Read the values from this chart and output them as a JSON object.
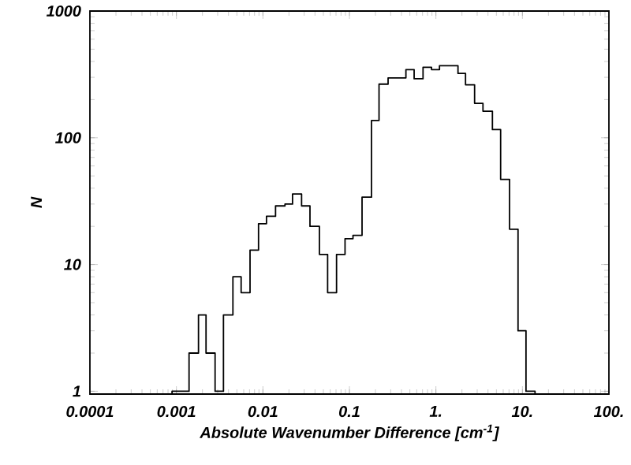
{
  "chart_data": {
    "type": "histogram",
    "xlabel": "Absolute Wavenumber Difference [cm$^{-1}$]",
    "ylabel": "N",
    "bins": [
      0.00089,
      0.0011,
      0.0014,
      0.0018,
      0.0022,
      0.0028,
      0.0035,
      0.0045,
      0.0056,
      0.0071,
      0.0089,
      0.011,
      0.014,
      0.018,
      0.022,
      0.028,
      0.035,
      0.045,
      0.056,
      0.071,
      0.089,
      0.11,
      0.14,
      0.18,
      0.22,
      0.28,
      0.35,
      0.45,
      0.56,
      0.71,
      0.89,
      1.1,
      1.4,
      1.8,
      2.2,
      2.8,
      3.5,
      4.5,
      5.6,
      7.1,
      8.9,
      11,
      14
    ],
    "values": [
      1,
      1,
      2,
      4,
      2,
      1,
      4,
      8,
      6,
      13,
      21,
      24,
      29,
      30,
      36,
      29,
      20,
      12,
      6,
      12,
      16,
      17,
      34,
      137,
      265,
      297,
      297,
      345,
      292,
      360,
      345,
      370,
      370,
      322,
      262,
      187,
      162,
      116,
      47,
      19,
      3,
      1
    ],
    "color": "#000000",
    "log": "xy",
    "xlim": [
      0.0001,
      100
    ],
    "ylim": [
      0.95,
      1000
    ],
    "xticks": [
      0.0001,
      0.001,
      0.01,
      0.1,
      {
        "value": 1,
        "label": "1."
      },
      {
        "value": 10,
        "label": "10."
      },
      {
        "value": 100,
        "label": "100."
      }
    ],
    "yticks": [
      1,
      10,
      100,
      1000
    ],
    "grid": false
  }
}
